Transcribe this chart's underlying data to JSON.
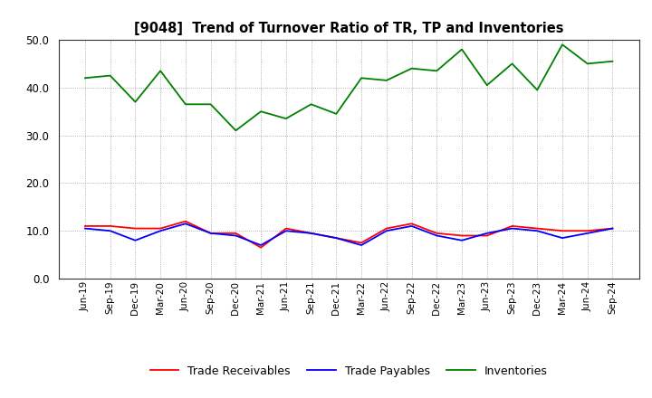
{
  "title": "[9048]  Trend of Turnover Ratio of TR, TP and Inventories",
  "labels": [
    "Jun-19",
    "Sep-19",
    "Dec-19",
    "Mar-20",
    "Jun-20",
    "Sep-20",
    "Dec-20",
    "Mar-21",
    "Jun-21",
    "Sep-21",
    "Dec-21",
    "Mar-22",
    "Jun-22",
    "Sep-22",
    "Dec-22",
    "Mar-23",
    "Jun-23",
    "Sep-23",
    "Dec-23",
    "Mar-24",
    "Jun-24",
    "Sep-24"
  ],
  "trade_receivables": [
    11.0,
    11.0,
    10.5,
    10.5,
    12.0,
    9.5,
    9.5,
    6.5,
    10.5,
    9.5,
    8.5,
    7.5,
    10.5,
    11.5,
    9.5,
    9.0,
    9.0,
    11.0,
    10.5,
    10.0,
    10.0,
    10.5
  ],
  "trade_payables": [
    10.5,
    10.0,
    8.0,
    10.0,
    11.5,
    9.5,
    9.0,
    7.0,
    10.0,
    9.5,
    8.5,
    7.0,
    10.0,
    11.0,
    9.0,
    8.0,
    9.5,
    10.5,
    10.0,
    8.5,
    9.5,
    10.5
  ],
  "inventories": [
    42.0,
    42.5,
    37.0,
    43.5,
    36.5,
    36.5,
    31.0,
    35.0,
    33.5,
    36.5,
    34.5,
    42.0,
    41.5,
    44.0,
    43.5,
    48.0,
    40.5,
    45.0,
    39.5,
    49.0,
    45.0,
    45.5
  ],
  "tr_color": "#ff0000",
  "tp_color": "#0000ff",
  "inv_color": "#008000",
  "ylim": [
    0,
    50
  ],
  "yticks": [
    0.0,
    10.0,
    20.0,
    30.0,
    40.0,
    50.0
  ],
  "background_color": "#ffffff",
  "grid_color": "#999999",
  "legend_labels": [
    "Trade Receivables",
    "Trade Payables",
    "Inventories"
  ]
}
